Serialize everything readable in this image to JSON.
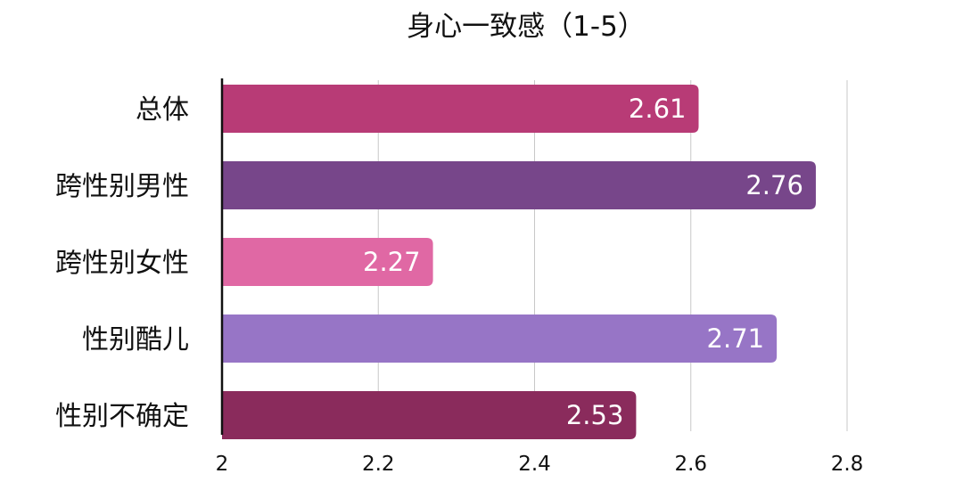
{
  "chart_data": {
    "type": "bar",
    "orientation": "horizontal",
    "title": "身心一致感（1-5）",
    "categories": [
      "总体",
      "跨性别男性",
      "跨性别女性",
      "性别酷儿",
      "性别不确定"
    ],
    "values": [
      2.61,
      2.76,
      2.27,
      2.71,
      2.53
    ],
    "value_labels": [
      "2.61",
      "2.76",
      "2.27",
      "2.71",
      "2.53"
    ],
    "bar_colors": [
      "#B83B76",
      "#77468A",
      "#E068A4",
      "#9775C6",
      "#8A2B5C"
    ],
    "xlim": [
      2,
      2.9
    ],
    "xticks": [
      2,
      2.2,
      2.4,
      2.6,
      2.8
    ],
    "xtick_labels": [
      "2",
      "2.2",
      "2.4",
      "2.6",
      "2.8"
    ],
    "grid": true,
    "legend": "none"
  }
}
